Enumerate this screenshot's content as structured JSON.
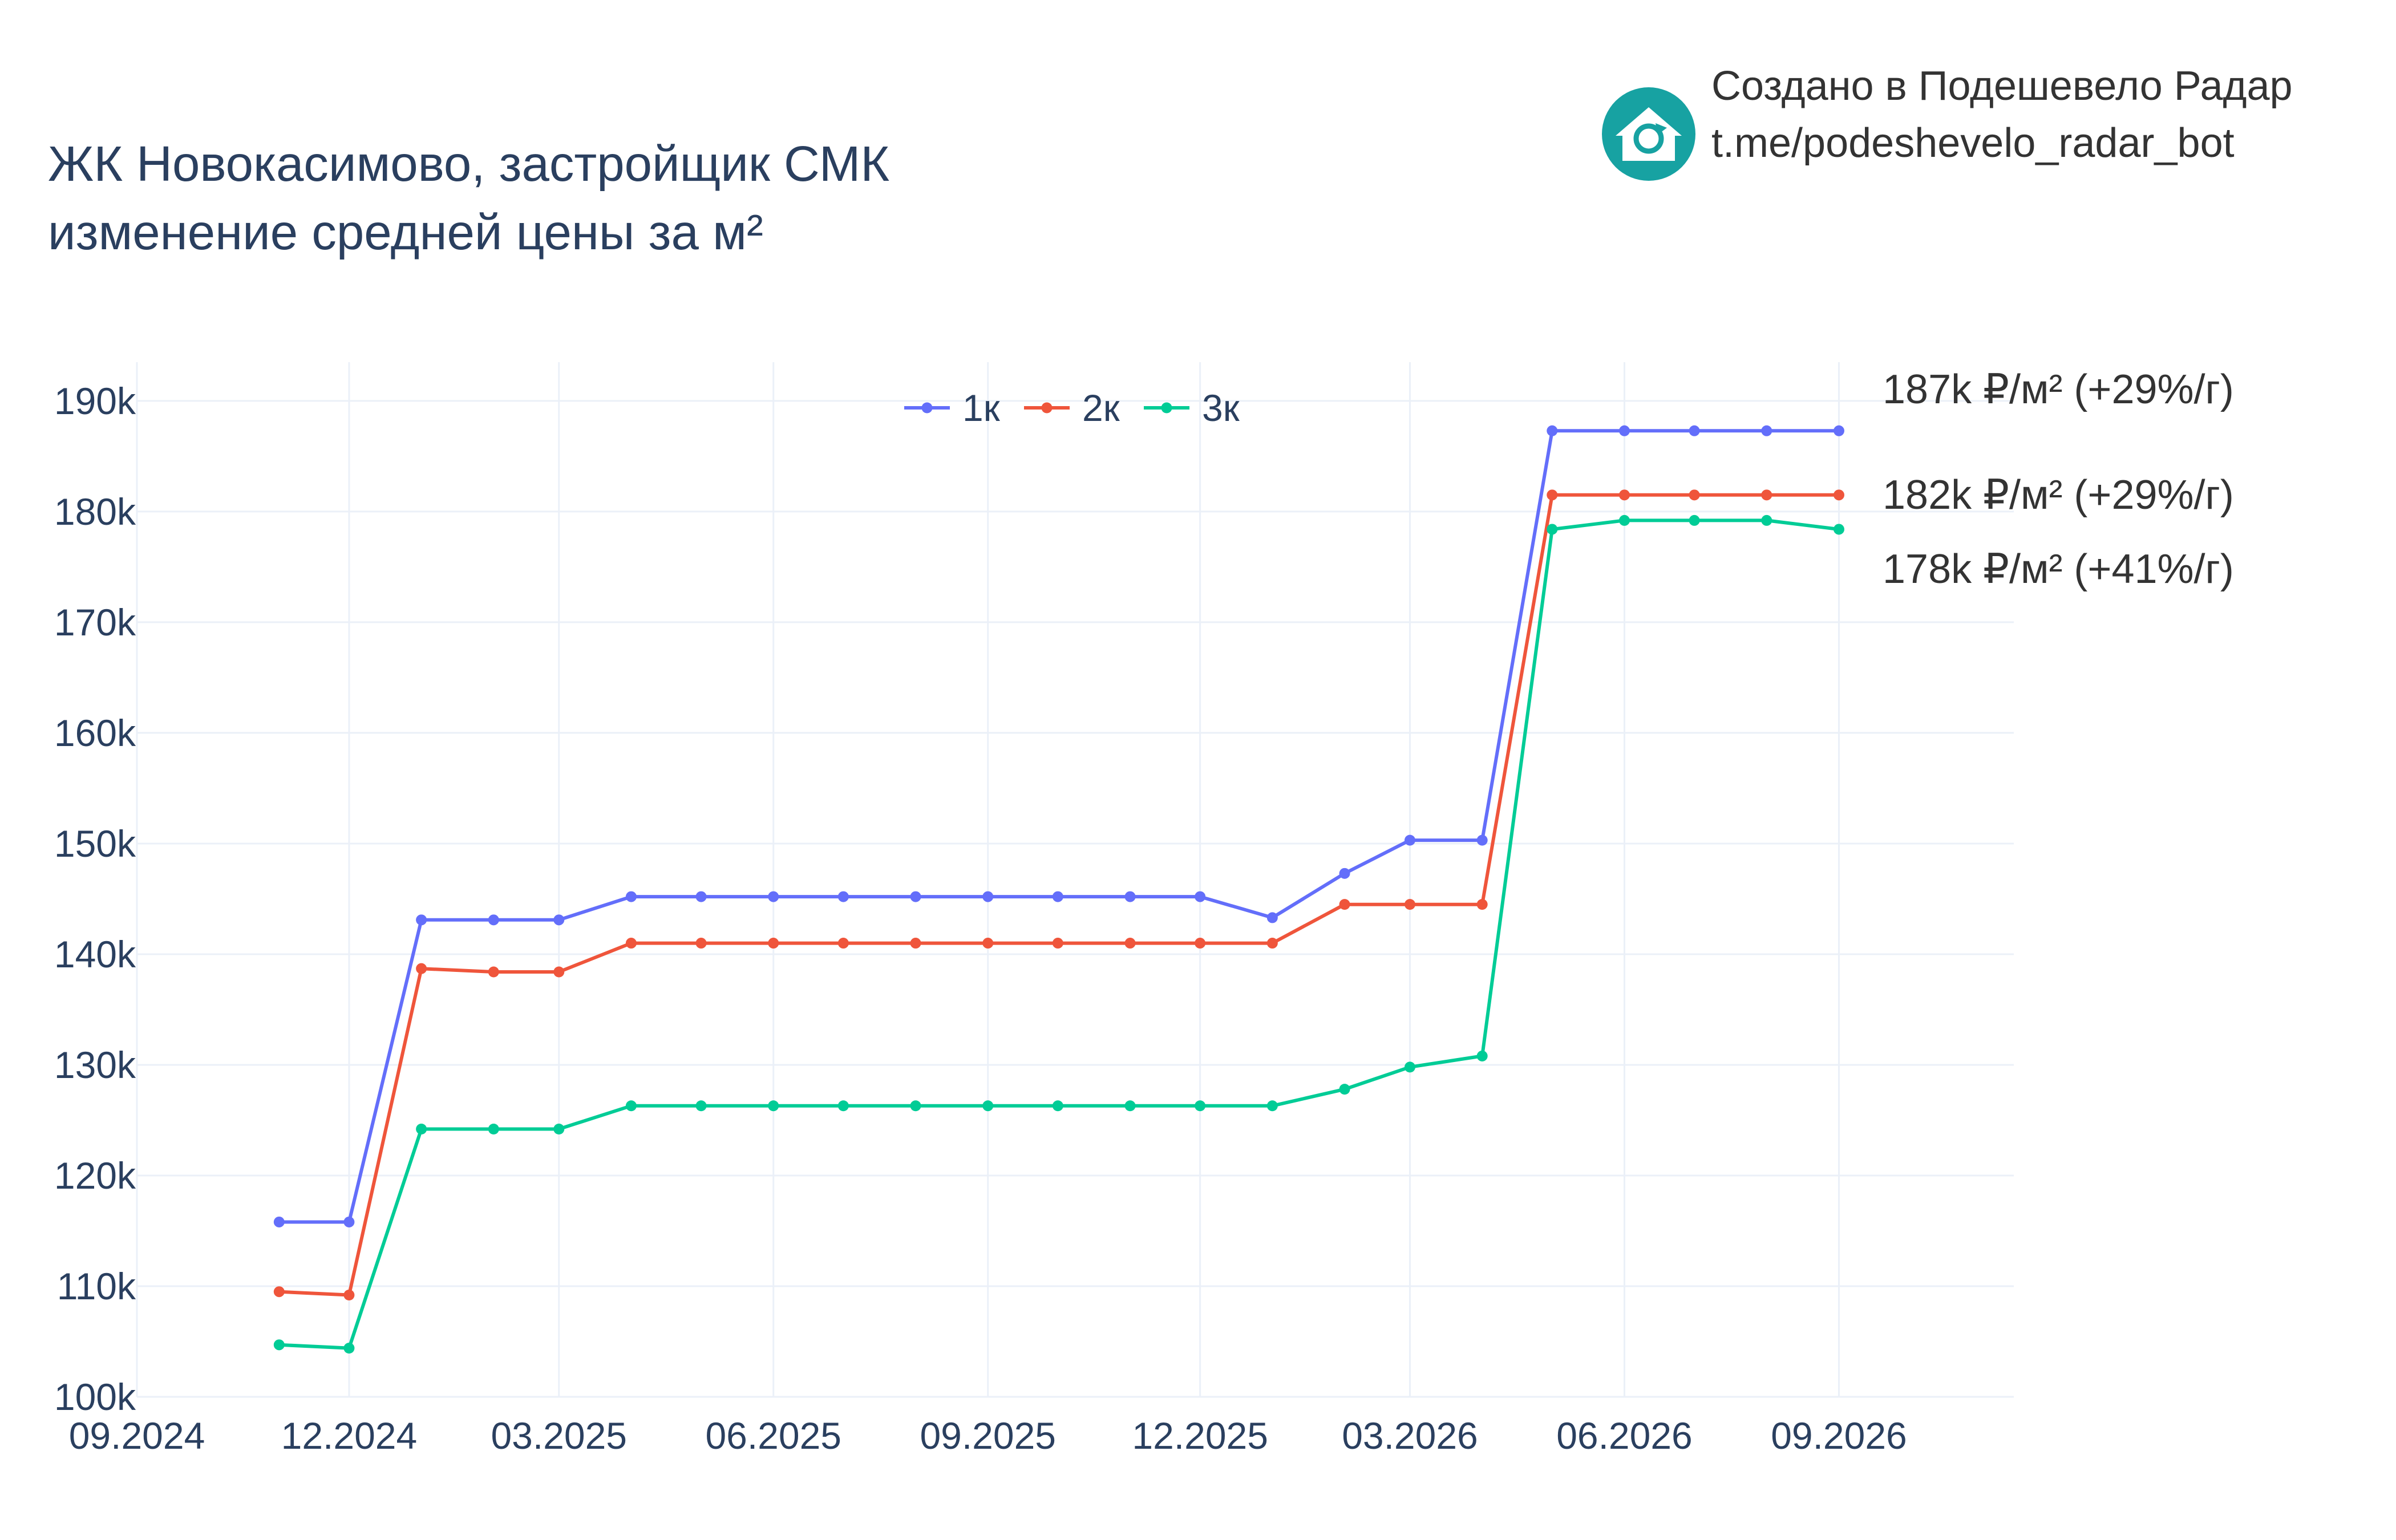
{
  "header": {
    "title_line1": "ЖК Новокасимово, застройщик СМК",
    "title_line2": "изменение средней цены за м²"
  },
  "branding": {
    "icon": "house-refresh-icon",
    "line1": "Создано в Подешевело Радар",
    "line2": "t.me/podeshevelo_radar_bot",
    "icon_color": "#17a2a2"
  },
  "end_labels": {
    "1k": "187k ₽/м² (+29%/г)",
    "2k": "182k ₽/м² (+29%/г)",
    "3k": "178k ₽/м² (+41%/г)"
  },
  "chart_data": {
    "type": "line",
    "title": "ЖК Новокасимово, застройщик СМК изменение средней цены за м²",
    "xlabel": "",
    "ylabel": "",
    "x_range": [
      "2024-09-01",
      "2026-11-15"
    ],
    "ylim": [
      100000,
      193500
    ],
    "grid": true,
    "legend_position": "top-center",
    "x_tick_values": [
      "2024-09-01",
      "2024-12-01",
      "2025-03-01",
      "2025-06-01",
      "2025-09-01",
      "2025-12-01",
      "2026-03-01",
      "2026-06-01",
      "2026-09-01"
    ],
    "x_tick_labels": [
      "09.2024",
      "12.2024",
      "03.2025",
      "06.2025",
      "09.2025",
      "12.2025",
      "03.2026",
      "06.2026",
      "09.2026"
    ],
    "y_tick_values": [
      100000,
      110000,
      120000,
      130000,
      140000,
      150000,
      160000,
      170000,
      180000,
      190000
    ],
    "y_tick_labels": [
      "100k",
      "110k",
      "120k",
      "130k",
      "140k",
      "150k",
      "160k",
      "170k",
      "180k",
      "190k"
    ],
    "x": [
      "2024-11-01",
      "2024-12-01",
      "2025-01-01",
      "2025-02-01",
      "2025-03-01",
      "2025-04-01",
      "2025-05-01",
      "2025-06-01",
      "2025-07-01",
      "2025-08-01",
      "2025-09-01",
      "2025-10-01",
      "2025-11-01",
      "2025-12-01",
      "2026-01-01",
      "2026-02-01",
      "2026-03-01",
      "2026-04-01",
      "2026-05-01",
      "2026-06-01",
      "2026-07-01",
      "2026-08-01",
      "2026-09-01"
    ],
    "series": [
      {
        "name": "1к",
        "color": "#636efa",
        "values": [
          115800,
          115800,
          143100,
          143100,
          143100,
          145200,
          145200,
          145200,
          145200,
          145200,
          145200,
          145200,
          145200,
          145200,
          143300,
          147300,
          150300,
          150300,
          187300,
          187300,
          187300,
          187300,
          187300
        ]
      },
      {
        "name": "2к",
        "color": "#ef553b",
        "values": [
          109500,
          109200,
          138700,
          138400,
          138400,
          141000,
          141000,
          141000,
          141000,
          141000,
          141000,
          141000,
          141000,
          141000,
          141000,
          144500,
          144500,
          144500,
          181500,
          181500,
          181500,
          181500,
          181500
        ]
      },
      {
        "name": "3к",
        "color": "#00cc96",
        "values": [
          104700,
          104400,
          124200,
          124200,
          124200,
          126300,
          126300,
          126300,
          126300,
          126300,
          126300,
          126300,
          126300,
          126300,
          126300,
          127800,
          129800,
          130800,
          178400,
          179200,
          179200,
          179200,
          178400
        ]
      }
    ]
  }
}
